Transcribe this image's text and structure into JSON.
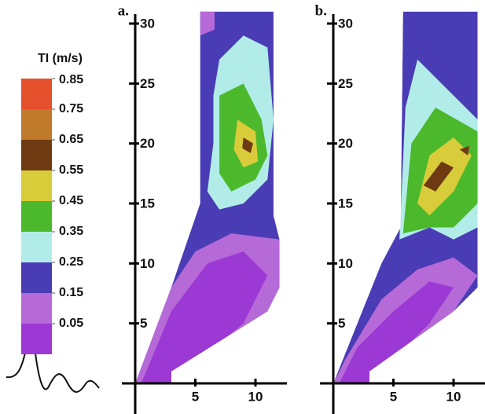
{
  "chart_data": [
    {
      "type": "contour",
      "title": "a.",
      "xlim": [
        0,
        12
      ],
      "ylim": [
        0,
        31
      ],
      "xticks": [
        5,
        10
      ],
      "yticks": [
        5,
        10,
        15,
        20,
        25,
        30
      ]
    },
    {
      "type": "contour",
      "title": "b.",
      "xlim": [
        0,
        12
      ],
      "ylim": [
        0,
        31
      ],
      "xticks": [
        5,
        10
      ],
      "yticks": [
        5,
        10,
        15,
        20,
        25,
        30
      ]
    },
    {
      "type": "colorbar",
      "title": "TI (m/s)",
      "ticks": [
        0.85,
        0.75,
        0.65,
        0.55,
        0.45,
        0.35,
        0.25,
        0.15,
        0.05
      ],
      "colors": [
        "#e4502c",
        "#c07a2c",
        "#6e3a12",
        "#d9cc3a",
        "#4cb82c",
        "#b2ece8",
        "#4a3cb4",
        "#b56ad8",
        "#9c38d4"
      ]
    }
  ]
}
